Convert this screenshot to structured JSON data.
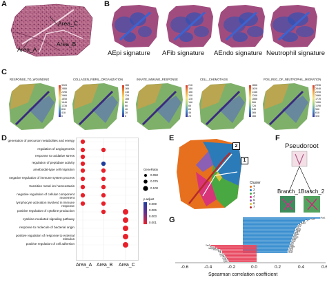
{
  "panels": [
    "A",
    "B",
    "C",
    "D",
    "E",
    "F",
    "G"
  ],
  "panel_a": {
    "labels": [
      "Area_C",
      "Area_A",
      "Area_B"
    ]
  },
  "panel_b": {
    "signatures": [
      "AEpi signature",
      "AFib signature",
      "AEndo signature",
      "Neutrophil signature"
    ]
  },
  "panel_c": {
    "maps": [
      {
        "title": "RESPONSE_TO_WOUNDING",
        "ticks": [
          "3320",
          "2880",
          "2490",
          "2060",
          "1850",
          "1640",
          "1230",
          "820",
          "410",
          "0"
        ]
      },
      {
        "title": "COLLAGEN_FIBRIL_ORGANIZATION",
        "ticks": [
          "180",
          "160",
          "140",
          "120",
          "100",
          "80",
          "60",
          "40",
          "20",
          "0"
        ]
      },
      {
        "title": "INNATE_IMMUNE_RESPONSE",
        "ticks": [
          "210",
          "180",
          "160",
          "140",
          "120",
          "100",
          "80",
          "60",
          "40",
          "20"
        ]
      },
      {
        "title": "CELL_CHEMOTAXIS",
        "ticks": [
          "1800",
          "1620",
          "1440",
          "1260",
          "1080",
          "900",
          "720",
          "540",
          "360",
          "180"
        ]
      },
      {
        "title": "POS_REG_OF_NEUTROPHIL_MIGRATION",
        "ticks": [
          "2930",
          "2640",
          "2350",
          "2060",
          "1770",
          "1480",
          "1190",
          "900",
          "610",
          "320"
        ]
      }
    ]
  },
  "panel_d": {
    "terms": [
      "generation of precursor metabolites and energy",
      "regulation of angiogenesis",
      "response to oxidative stress",
      "regulation of peptidase activity",
      "ameboidal-type cell migration",
      "negative regulation of immune system process",
      "transition metal ion homeostasis",
      "negative regulation of cellular component movement",
      "lymphocyte activation involved in immune response",
      "positive regulation of cytokine production",
      "cytokine-mediated signaling pathway",
      "response to molecule of bacterial origin",
      "positive regulation of response to external stimulus",
      "positive regulation of cell adhesion"
    ],
    "xcats": [
      "Area_A",
      "Area_B",
      "Area_C"
    ],
    "dots": [
      {
        "term": 0,
        "x": 0
      },
      {
        "term": 1,
        "x": 0
      },
      {
        "term": 2,
        "x": 0
      },
      {
        "term": 3,
        "x": 0
      },
      {
        "term": 4,
        "x": 0
      },
      {
        "term": 5,
        "x": 0
      },
      {
        "term": 6,
        "x": 0
      },
      {
        "term": 7,
        "x": 0
      },
      {
        "term": 8,
        "x": 0
      },
      {
        "term": 1,
        "x": 1
      },
      {
        "term": 3,
        "x": 1
      },
      {
        "term": 4,
        "x": 1
      },
      {
        "term": 5,
        "x": 1
      },
      {
        "term": 6,
        "x": 1
      },
      {
        "term": 7,
        "x": 1
      },
      {
        "term": 8,
        "x": 1
      },
      {
        "term": 9,
        "x": 1
      },
      {
        "term": 9,
        "x": 2
      },
      {
        "term": 10,
        "x": 2
      },
      {
        "term": 11,
        "x": 2
      },
      {
        "term": 12,
        "x": 2
      },
      {
        "term": 13,
        "x": 2
      }
    ],
    "legend_generatio_title": "GeneRatio",
    "legend_generatio": [
      "0.050",
      "0.075",
      "0.100"
    ],
    "legend_padj_title": "p.adjust",
    "legend_padj": [
      "0.009",
      "0.006",
      "0.003",
      "0.001"
    ],
    "colors": {
      "high": "#e8202a",
      "mid": "#6a2f8c",
      "low": "#1f3d9c"
    }
  },
  "panel_e": {
    "markers": [
      "2",
      "1"
    ],
    "legend_title": "Cluster",
    "clusters": [
      {
        "label": "1",
        "color": "#e6701e"
      },
      {
        "label": "2",
        "color": "#2b7bb9"
      },
      {
        "label": "3",
        "color": "#49a842"
      },
      {
        "label": "4",
        "color": "#d52a8a"
      },
      {
        "label": "5",
        "color": "#8a5fb4"
      },
      {
        "label": "6",
        "color": "#d8c43a"
      },
      {
        "label": "7",
        "color": "#b52a2a"
      }
    ]
  },
  "panel_f": {
    "root": "Pseudoroot",
    "branch1": "Branch_1",
    "branch2": "Branch_2"
  },
  "panel_g": {
    "xlabel": "Spearman correlation coefficient",
    "xticks": [
      "-0.6",
      "-0.4",
      "-0.2",
      "0.0",
      "0.2",
      "0.4",
      "0.6"
    ],
    "positive_genes": [
      "Rgs1",
      "Cxcl2",
      "Crx",
      "Sic",
      "Nr4a1",
      "Ier2",
      "Zap",
      "Gc",
      "Cxcr6",
      "Pdgfrl",
      "Ccdc9",
      "Eff2",
      "Ahnak",
      "Nrf",
      "Rab25",
      "Laptl",
      "Rarb",
      "Cog",
      "Sel",
      "Ccl",
      "Ptgc",
      "Ptgds",
      "Ccl2",
      "Sn11",
      "Tpm1",
      "Nedd"
    ],
    "negative_genes": [
      "Saa3",
      "Ptn1",
      "Serpina3n",
      "Pla2g2a",
      "Mup",
      "Ltg",
      "Lcn2",
      "Cxcl5",
      "Pdt",
      "Lcn4",
      "Sod3",
      "Ly6c1"
    ],
    "colors": {
      "positive": "#3a8fd0",
      "negative": "#e8475f"
    }
  }
}
